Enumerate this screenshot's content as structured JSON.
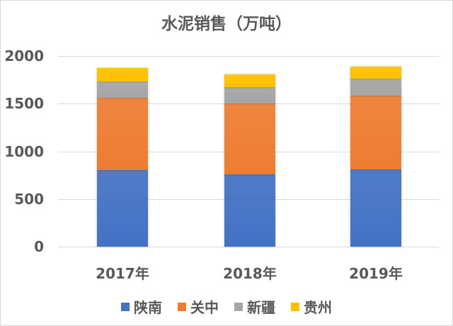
{
  "chart_data": {
    "type": "bar",
    "stacked": true,
    "title": "水泥销售（万吨）",
    "xlabel": "",
    "ylabel": "",
    "categories": [
      "2017年",
      "2018年",
      "2019年"
    ],
    "series": [
      {
        "name": "陕南",
        "color": "#4472c4",
        "values": [
          800,
          760,
          810
        ]
      },
      {
        "name": "关中",
        "color": "#ed7d31",
        "values": [
          760,
          740,
          770
        ]
      },
      {
        "name": "新疆",
        "color": "#a5a5a5",
        "values": [
          170,
          170,
          180
        ]
      },
      {
        "name": "贵州",
        "color": "#ffc000",
        "values": [
          140,
          140,
          130
        ]
      }
    ],
    "ylim": [
      0,
      2000
    ],
    "yticks": [
      0,
      500,
      1000,
      1500,
      2000
    ],
    "grid": true,
    "legend_position": "bottom"
  },
  "title": "水泥销售（万吨）",
  "yticks": [
    "2000",
    "1500",
    "1000",
    "500",
    "0"
  ],
  "categories": [
    "2017年",
    "2018年",
    "2019年"
  ],
  "legend": [
    {
      "label": "陕南",
      "color": "#4472c4"
    },
    {
      "label": "关中",
      "color": "#ed7d31"
    },
    {
      "label": "新疆",
      "color": "#a5a5a5"
    },
    {
      "label": "贵州",
      "color": "#ffc000"
    }
  ]
}
